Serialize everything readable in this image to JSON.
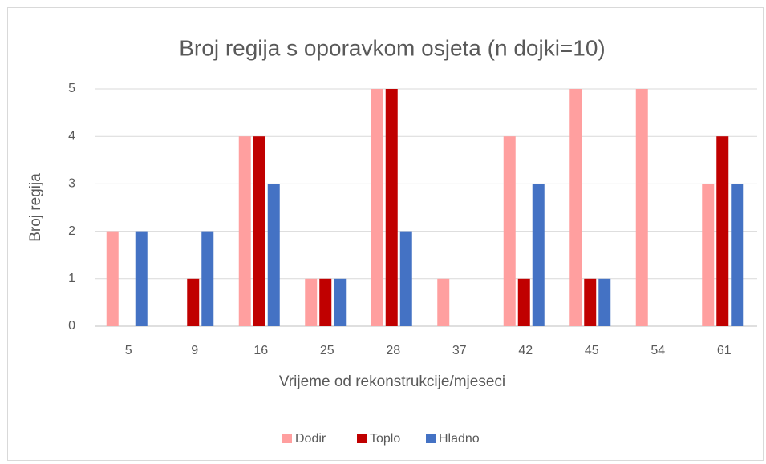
{
  "chart_data": {
    "type": "bar",
    "title": "Broj regija s oporavkom osjeta (n dojki=10)",
    "x_label": "Vrijeme od rekonstrukcije/mjeseci",
    "y_label": "Broj regija",
    "categories": [
      "5",
      "9",
      "16",
      "25",
      "28",
      "37",
      "42",
      "45",
      "54",
      "61"
    ],
    "series": [
      {
        "name": "Dodir",
        "color": "#ff9f9f",
        "values": [
          2,
          0,
          4,
          1,
          5,
          1,
          4,
          5,
          5,
          3
        ]
      },
      {
        "name": "Toplo",
        "color": "#c00000",
        "values": [
          0,
          1,
          4,
          1,
          5,
          0,
          1,
          1,
          0,
          4
        ]
      },
      {
        "name": "Hladno",
        "color": "#4472c4",
        "values": [
          2,
          2,
          3,
          1,
          2,
          0,
          3,
          1,
          0,
          3
        ]
      }
    ],
    "ylim": [
      0,
      5
    ],
    "yticks": [
      0,
      1,
      2,
      3,
      4,
      5
    ],
    "grid": true,
    "legend": "bottom"
  }
}
